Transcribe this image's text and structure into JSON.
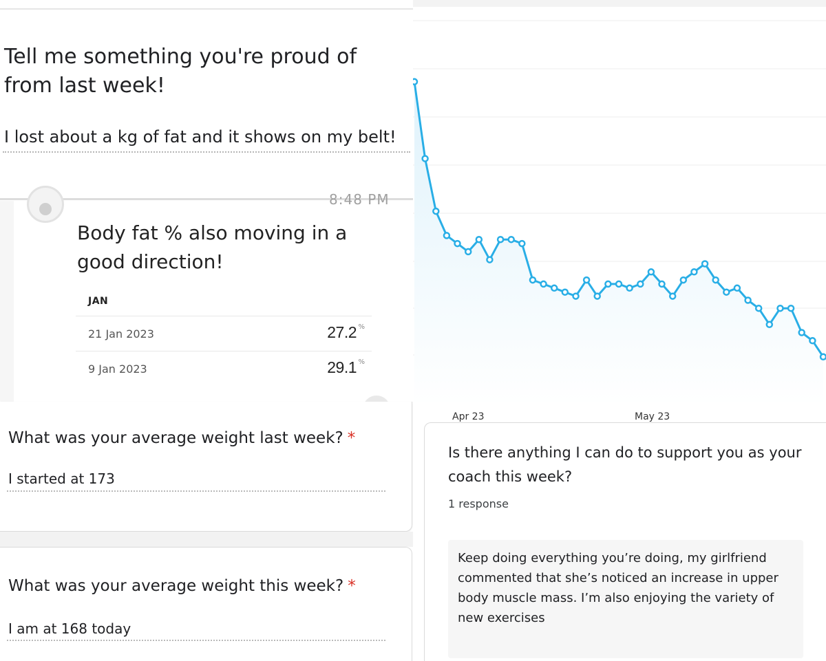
{
  "question_proud": {
    "title": "Tell me something you're proud of from last week!",
    "answer": "I lost about a kg of fat and it shows on my belt!"
  },
  "body_fat_message": {
    "timestamp": "8:48 PM",
    "message": "Body fat % also moving in a good direction!",
    "month_label": "JAN",
    "entries": [
      {
        "date": "21 Jan 2023",
        "value": "27.2",
        "unit": "%"
      },
      {
        "date": "9 Jan 2023",
        "value": "29.1",
        "unit": "%"
      }
    ]
  },
  "question_last_week": {
    "label": "What was your average weight last week?",
    "required_mark": "*",
    "answer": "I started at 173"
  },
  "question_this_week": {
    "label": "What was your average weight this week?",
    "required_mark": "*",
    "answer": "I am at 168 today"
  },
  "chart_data": {
    "type": "line",
    "title": "",
    "xlabel": "",
    "ylabel": "",
    "x_ticks": [
      "Apr 23",
      "May 23"
    ],
    "series": [
      {
        "name": "weight",
        "values": [
          175.5,
          173.6,
          172.3,
          171.7,
          171.5,
          171.3,
          171.6,
          171.1,
          171.6,
          171.6,
          171.5,
          170.6,
          170.5,
          170.4,
          170.3,
          170.2,
          170.6,
          170.2,
          170.5,
          170.5,
          170.4,
          170.5,
          170.8,
          170.5,
          170.2,
          170.6,
          170.8,
          171.0,
          170.6,
          170.3,
          170.4,
          170.1,
          169.9,
          169.5,
          169.9,
          169.9,
          169.3,
          169.1,
          168.7
        ]
      }
    ],
    "colors": {
      "line": "#29aee6",
      "fill": "#dff2fb"
    }
  },
  "coach_question": {
    "label": "Is there anything I can do to support you as your coach this week?",
    "response_count": "1 response",
    "response": "Keep doing everything you’re doing, my girlfriend commented that she’s noticed an increase in upper body muscle mass. I’m also enjoying the variety of new exercises"
  }
}
